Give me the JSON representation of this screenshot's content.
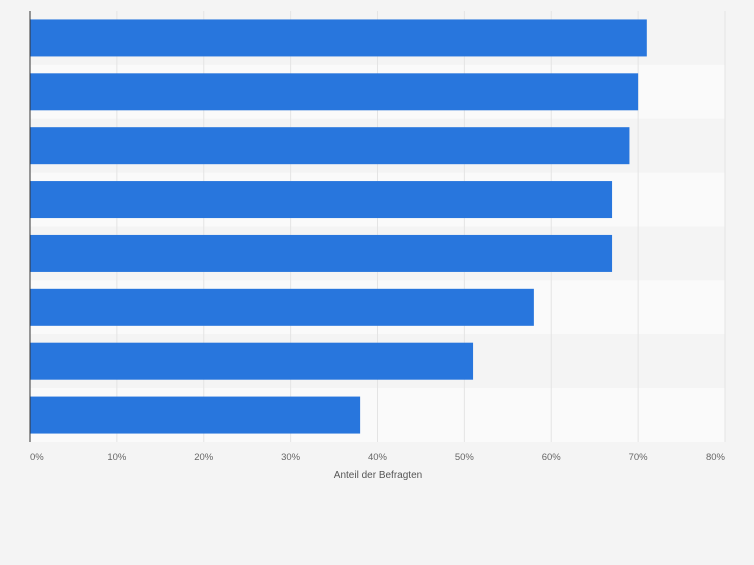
{
  "chart_data": {
    "type": "bar",
    "orientation": "horizontal",
    "categories": [
      "",
      "",
      "",
      "",
      "",
      "",
      "",
      ""
    ],
    "values": [
      71,
      70,
      69,
      67,
      67,
      58,
      51,
      38
    ],
    "xlabel": "Anteil der Befragten",
    "ylabel": "",
    "xlim": [
      0,
      80
    ],
    "x_ticks": [
      "0%",
      "10%",
      "20%",
      "30%",
      "40%",
      "50%",
      "60%",
      "70%",
      "80%"
    ],
    "grid": true,
    "legend": "none",
    "colors": {
      "bar": "#2876dd",
      "background": "#f4f4f4",
      "band_light": "#fafafa",
      "gridline": "#e4e4e4",
      "axis": "#333333"
    }
  }
}
